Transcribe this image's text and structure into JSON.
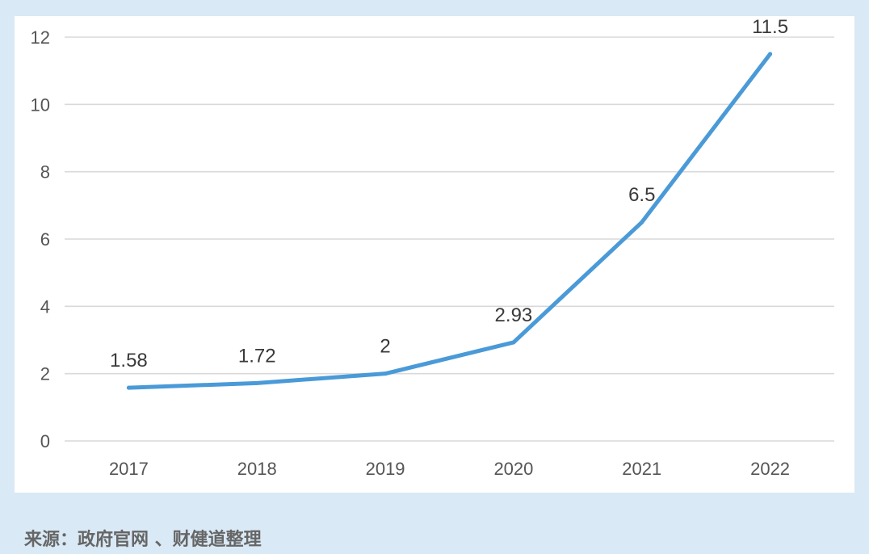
{
  "source_note": "来源：政府官网 、财健道整理",
  "colors": {
    "line": "#4a9ad8",
    "grid": "#d9d9d9",
    "text": "#3a3a3a",
    "axis_text": "#555555",
    "page_background": "#d9e9f5",
    "panel_background": "#ffffff",
    "source_text": "#666666"
  },
  "chart_data": {
    "type": "line",
    "categories": [
      "2017",
      "2018",
      "2019",
      "2020",
      "2021",
      "2022"
    ],
    "series": [
      {
        "values": [
          1.58,
          1.72,
          2,
          2.93,
          6.5,
          11.5
        ],
        "labels": [
          "1.58",
          "1.72",
          "2",
          "2.93",
          "6.5",
          "11.5"
        ]
      }
    ],
    "y_ticks": [
      "0",
      "2",
      "4",
      "6",
      "8",
      "10",
      "12"
    ],
    "ylim": [
      0,
      12
    ],
    "grid": true,
    "legend": "none"
  }
}
